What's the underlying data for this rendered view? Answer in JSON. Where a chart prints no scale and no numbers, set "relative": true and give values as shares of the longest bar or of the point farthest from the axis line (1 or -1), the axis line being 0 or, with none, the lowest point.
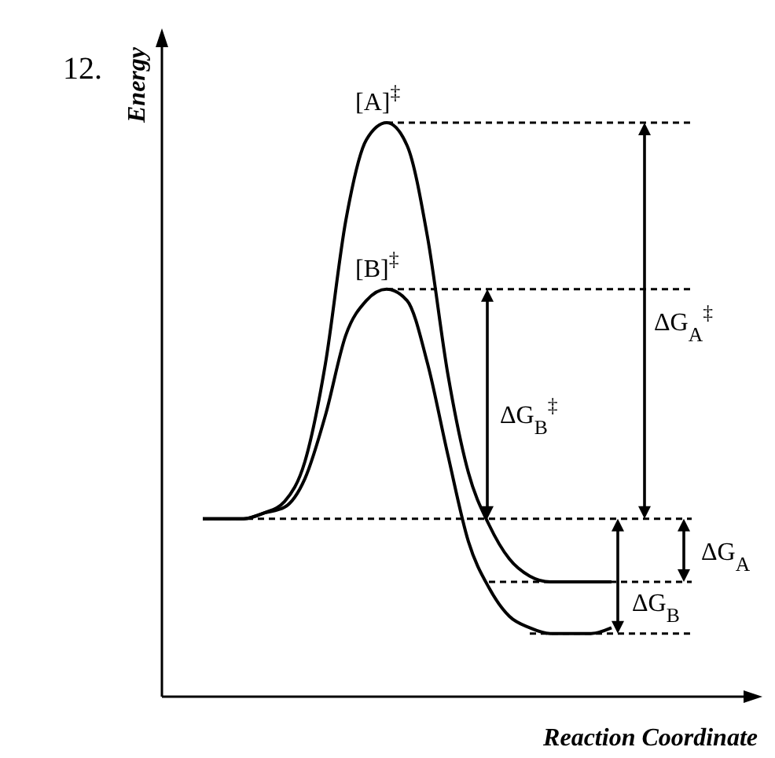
{
  "chart_data": {
    "type": "line",
    "relative": true,
    "xlabel": "Reaction Coordinate",
    "ylabel": "Energy",
    "categories": [
      null,
      null,
      null,
      null,
      null,
      null,
      null,
      null,
      null,
      null,
      null,
      null,
      null,
      null,
      null,
      null,
      null,
      null,
      null,
      null,
      null,
      null,
      null,
      null,
      null,
      null,
      null,
      null,
      null,
      null
    ],
    "series": [
      {
        "color": "#000000",
        "values": [
          null,
          null,
          0.31,
          0.31,
          0.31,
          0.32,
          0.34,
          0.41,
          0.58,
          0.83,
          0.97,
          1,
          0.96,
          0.8,
          0.56,
          0.39,
          0.3,
          0.24,
          0.21,
          0.2,
          0.2,
          0.2,
          0.2,
          null,
          null,
          null,
          null,
          null,
          null,
          null
        ]
      },
      {
        "color": "#000000",
        "values": [
          null,
          null,
          0.31,
          0.31,
          0.31,
          0.32,
          0.33,
          0.38,
          0.49,
          0.63,
          0.69,
          0.71,
          0.69,
          0.58,
          0.42,
          0.27,
          0.19,
          0.14,
          0.12,
          0.11,
          0.11,
          0.11,
          0.12,
          null,
          null,
          null,
          null,
          null,
          null,
          null
        ]
      }
    ],
    "ref_lines": [
      {
        "axis": "y",
        "value": 0.31,
        "line_style": "dashed"
      },
      {
        "axis": "y",
        "value": 1,
        "line_style": "dashed"
      },
      {
        "axis": "y",
        "value": 0.71,
        "line_style": "dashed"
      },
      {
        "axis": "y",
        "value": 0.2,
        "line_style": "dashed"
      },
      {
        "axis": "y",
        "value": 0.11,
        "line_style": "dashed"
      }
    ],
    "annotations": [
      "12.",
      {
        "text": "[A]$^{‡}$",
        "y": 1
      },
      {
        "text": "[B]$^{‡}$",
        "y": 0.71
      },
      "ΔG$_{A}$$^{‡}$",
      "ΔG$_{B}$$^{‡}$",
      "ΔG$_{A}$",
      "ΔG$_{B}$"
    ],
    "line_style": "solid",
    "marker": "none"
  }
}
